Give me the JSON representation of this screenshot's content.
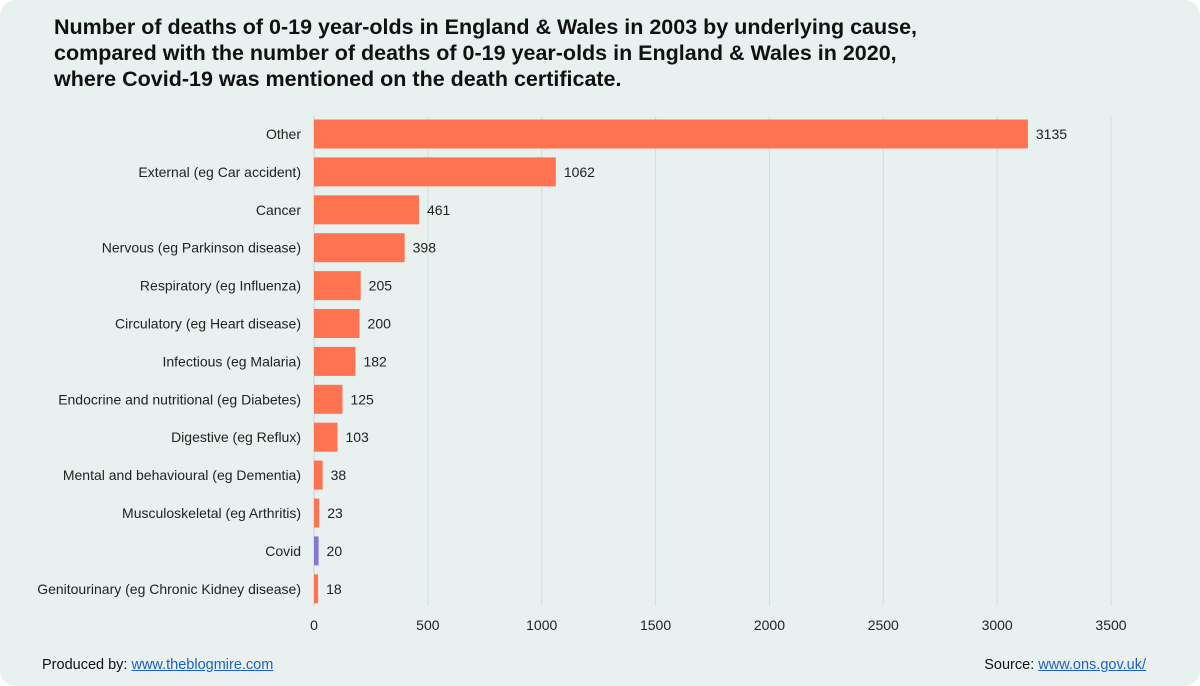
{
  "title_lines": [
    "Number of deaths of 0-19 year-olds in England & Wales in 2003 by underlying cause,",
    "compared with the number of deaths of 0-19 year-olds in England & Wales in 2020,",
    "where Covid-19 was mentioned on the death certificate."
  ],
  "footer": {
    "produced_label": "Produced by:",
    "produced_link": "www.theblogmire.com",
    "source_label": "Source:",
    "source_link": "www.ons.gov.uk/"
  },
  "colors": {
    "background": "#e8f1f0",
    "bar": "#ff7350",
    "highlight": "#8577d6",
    "grid": "#d4dcdb"
  },
  "chart_data": {
    "type": "bar",
    "orientation": "horizontal",
    "categories": [
      "Other",
      "External (eg Car accident)",
      "Cancer",
      "Nervous (eg Parkinson disease)",
      "Respiratory (eg Influenza)",
      "Circulatory (eg Heart disease)",
      "Infectious (eg Malaria)",
      "Endocrine and nutritional (eg Diabetes)",
      "Digestive (eg Reflux)",
      "Mental and behavioural (eg Dementia)",
      "Musculoskeletal (eg Arthritis)",
      "Covid",
      "Genitourinary (eg Chronic Kidney disease)"
    ],
    "values": [
      3135,
      1062,
      461,
      398,
      205,
      200,
      182,
      125,
      103,
      38,
      23,
      20,
      18
    ],
    "highlight_category": "Covid",
    "xlim": [
      0,
      3500
    ],
    "xticks": [
      0,
      500,
      1000,
      1500,
      2000,
      2500,
      3000,
      3500
    ],
    "grid": true,
    "data_labels": true
  }
}
